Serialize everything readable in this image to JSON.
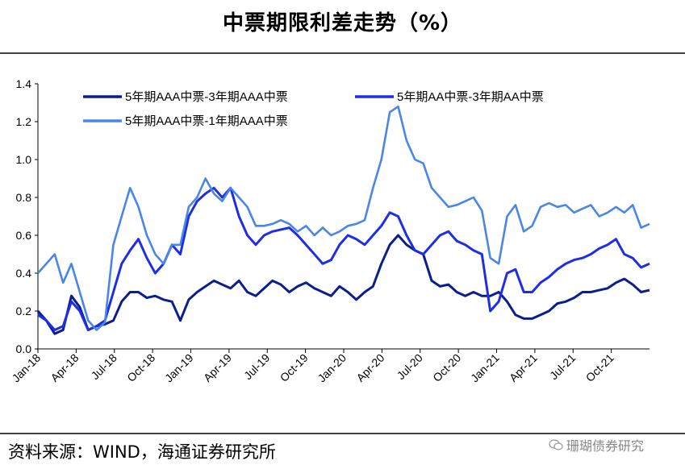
{
  "title": "中票期限利差走势（%）",
  "source": "资料来源：WIND，海通证券研究所",
  "watermark": "珊瑚债券研究",
  "chart_data": {
    "type": "line",
    "title": "中票期限利差走势（%）",
    "xlabel": "",
    "ylabel": "",
    "ylim": [
      0,
      1.4
    ],
    "yticks": [
      "0.0",
      "0.2",
      "0.4",
      "0.6",
      "0.8",
      "1.0",
      "1.2",
      "1.4"
    ],
    "xticks": [
      "Jan-18",
      "Apr-18",
      "Jul-18",
      "Oct-18",
      "Jan-19",
      "Apr-19",
      "Jul-19",
      "Oct-19",
      "Jan-20",
      "Apr-20",
      "Jul-20",
      "Oct-20",
      "Jan-21",
      "Apr-21",
      "Jul-21",
      "Oct-21"
    ],
    "grid": false,
    "legend_position": "top",
    "series": [
      {
        "name": "5年期AAA中票-3年期AAA中票",
        "color": "#0a1f8f",
        "values": [
          0.2,
          0.15,
          0.08,
          0.1,
          0.28,
          0.22,
          0.1,
          0.12,
          0.13,
          0.15,
          0.25,
          0.3,
          0.3,
          0.27,
          0.28,
          0.26,
          0.25,
          0.15,
          0.26,
          0.3,
          0.33,
          0.36,
          0.34,
          0.32,
          0.36,
          0.3,
          0.28,
          0.32,
          0.36,
          0.34,
          0.3,
          0.33,
          0.35,
          0.32,
          0.3,
          0.28,
          0.33,
          0.3,
          0.26,
          0.3,
          0.33,
          0.45,
          0.55,
          0.6,
          0.55,
          0.52,
          0.5,
          0.36,
          0.33,
          0.34,
          0.3,
          0.28,
          0.3,
          0.28,
          0.28,
          0.3,
          0.25,
          0.18,
          0.16,
          0.16,
          0.18,
          0.2,
          0.24,
          0.25,
          0.27,
          0.3,
          0.3,
          0.31,
          0.32,
          0.35,
          0.37,
          0.34,
          0.3,
          0.31
        ]
      },
      {
        "name": "5年期AA中票-3年期AA中票",
        "color": "#1e2ee8",
        "values": [
          0.18,
          0.15,
          0.1,
          0.12,
          0.25,
          0.2,
          0.1,
          0.12,
          0.15,
          0.3,
          0.45,
          0.52,
          0.58,
          0.48,
          0.4,
          0.45,
          0.55,
          0.5,
          0.7,
          0.78,
          0.82,
          0.85,
          0.8,
          0.85,
          0.7,
          0.6,
          0.55,
          0.6,
          0.62,
          0.63,
          0.64,
          0.6,
          0.55,
          0.5,
          0.45,
          0.47,
          0.55,
          0.6,
          0.58,
          0.55,
          0.6,
          0.65,
          0.72,
          0.7,
          0.6,
          0.52,
          0.5,
          0.55,
          0.6,
          0.62,
          0.57,
          0.55,
          0.52,
          0.5,
          0.2,
          0.25,
          0.4,
          0.42,
          0.3,
          0.3,
          0.35,
          0.38,
          0.42,
          0.45,
          0.47,
          0.48,
          0.5,
          0.53,
          0.55,
          0.58,
          0.5,
          0.48,
          0.43,
          0.45
        ]
      },
      {
        "name": "5年期AAA中票-1年期AAA中票",
        "color": "#4a86e8",
        "values": [
          0.4,
          0.45,
          0.5,
          0.35,
          0.45,
          0.3,
          0.15,
          0.1,
          0.14,
          0.55,
          0.7,
          0.85,
          0.75,
          0.6,
          0.5,
          0.45,
          0.55,
          0.55,
          0.75,
          0.8,
          0.9,
          0.82,
          0.78,
          0.85,
          0.8,
          0.75,
          0.65,
          0.65,
          0.66,
          0.68,
          0.66,
          0.62,
          0.65,
          0.6,
          0.64,
          0.6,
          0.62,
          0.65,
          0.66,
          0.68,
          0.85,
          1.0,
          1.25,
          1.28,
          1.1,
          1.0,
          0.98,
          0.85,
          0.8,
          0.75,
          0.76,
          0.78,
          0.8,
          0.73,
          0.48,
          0.45,
          0.7,
          0.76,
          0.62,
          0.65,
          0.75,
          0.77,
          0.75,
          0.76,
          0.72,
          0.74,
          0.76,
          0.7,
          0.72,
          0.75,
          0.72,
          0.76,
          0.64,
          0.66
        ]
      }
    ]
  }
}
